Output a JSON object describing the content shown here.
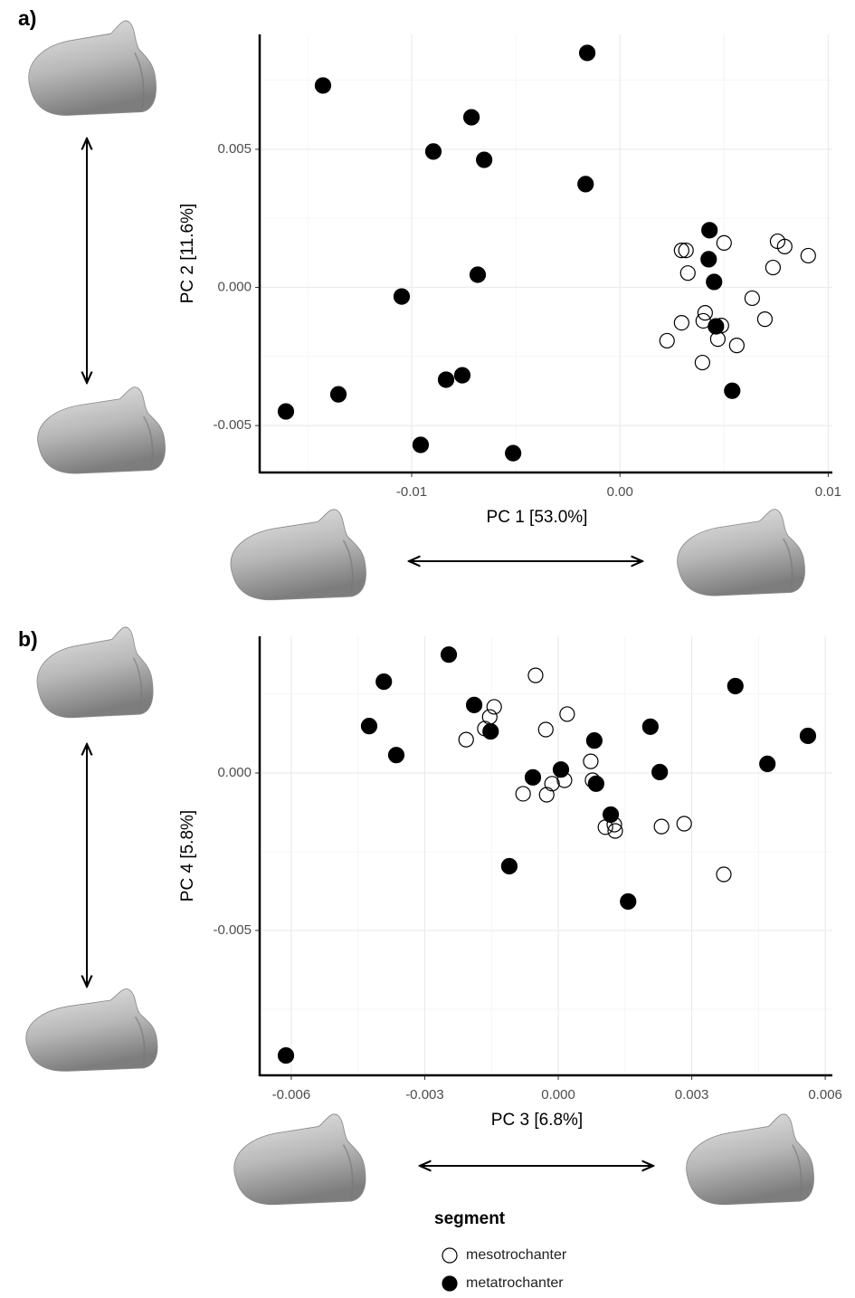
{
  "chart_data": [
    {
      "type": "scatter",
      "panel_label": "a)",
      "x_label": "PC 1 [53.0%]",
      "y_label": "PC 2 [11.6%]",
      "xlim": [
        -0.0173,
        0.0102
      ],
      "ylim": [
        -0.0067,
        0.00916
      ],
      "xticks": [
        -0.01,
        {
          "value": 0,
          "label": "0.00"
        },
        0.01
      ],
      "yticks": [
        -0.005,
        {
          "value": 0,
          "label": "0.000"
        },
        0.005
      ],
      "xminor": [
        -0.015,
        -0.005,
        0.005
      ],
      "yminor": [
        -0.0025,
        0.0025,
        0.0075
      ],
      "grid": true,
      "series": [
        {
          "name": "mesotrochanter",
          "color": "#000000",
          "filled": false,
          "x": [
            0.00296,
            0.00317,
            0.005,
            0.00757,
            0.00791,
            0.00904,
            0.00735,
            0.00326,
            0.00635,
            0.00409,
            0.004,
            0.00296,
            0.00696,
            0.00487,
            0.0047,
            0.00226,
            0.00561,
            0.00396
          ],
          "values": [
            0.00134,
            0.00134,
            0.00161,
            0.00167,
            0.00148,
            0.00115,
            0.00072,
            0.00052,
            -0.00039,
            -0.00092,
            -0.00121,
            -0.00128,
            -0.00115,
            -0.00138,
            -0.00187,
            -0.00193,
            -0.0021,
            -0.00272
          ]
        },
        {
          "name": "metatrochanter",
          "color": "#000000",
          "filled": true,
          "x": [
            -0.00157,
            -0.01426,
            -0.00713,
            -0.00896,
            -0.00652,
            -0.00165,
            0.0043,
            0.00426,
            0.00452,
            -0.00683,
            -0.01048,
            0.00461,
            -0.00757,
            -0.00835,
            0.00539,
            -0.01352,
            -0.01604,
            -0.00957,
            -0.00513
          ],
          "values": [
            0.00849,
            0.00731,
            0.00616,
            0.00492,
            0.00462,
            0.00374,
            0.00207,
            0.00102,
            0.0002,
            0.00046,
            -0.00033,
            -0.00141,
            -0.00318,
            -0.00334,
            -0.00374,
            -0.00387,
            -0.00449,
            -0.0057,
            -0.006
          ]
        }
      ]
    },
    {
      "type": "scatter",
      "panel_label": "b)",
      "x_label": "PC 3 [6.8%]",
      "y_label": "PC 4 [5.8%]",
      "xlim": [
        -0.00671,
        0.00616
      ],
      "ylim": [
        -0.0096,
        0.00434
      ],
      "xticks": [
        -0.006,
        -0.003,
        {
          "value": 0,
          "label": "0.000"
        },
        0.003,
        0.006
      ],
      "yticks": [
        -0.005,
        {
          "value": 0,
          "label": "0.000"
        }
      ],
      "xminor": [
        -0.0045,
        -0.0015,
        0.0015,
        0.0045
      ],
      "yminor": [
        -0.0075,
        -0.0025,
        0.0025
      ],
      "grid": true,
      "legend_title": "segment",
      "series": [
        {
          "name": "mesotrochanter",
          "color": "#000000",
          "filled": false,
          "x": [
            -0.00051,
            -0.00144,
            -0.00154,
            -0.00165,
            0.0002,
            -0.00028,
            -0.00207,
            0.00073,
            0.00077,
            0.00014,
            -0.00014,
            -0.00079,
            -0.00026,
            0.00106,
            0.00126,
            0.00128,
            0.00232,
            0.00283,
            0.00372
          ],
          "values": [
            0.0031,
            0.0021,
            0.00178,
            0.00141,
            0.00187,
            0.00138,
            0.00106,
            0.00037,
            -0.00023,
            -0.00023,
            -0.00034,
            -0.00066,
            -0.00069,
            -0.00172,
            -0.00164,
            -0.00184,
            -0.0017,
            -0.00161,
            -0.00322
          ]
        },
        {
          "name": "metatrochanter",
          "color": "#000000",
          "filled": true,
          "x": [
            -0.00246,
            -0.00392,
            0.00398,
            -0.00189,
            -0.00425,
            0.00207,
            -0.00152,
            0.00561,
            0.00081,
            -0.00364,
            0.0047,
            6e-05,
            0.00228,
            -0.00057,
            0.00085,
            0.00118,
            -0.0011,
            0.00157,
            -0.00612
          ],
          "values": [
            0.00376,
            0.0029,
            0.00276,
            0.00216,
            0.00149,
            0.00147,
            0.00132,
            0.00118,
            0.00103,
            0.00057,
            0.00029,
            0.00011,
            3e-05,
            -0.00014,
            -0.00034,
            -0.00132,
            -0.00296,
            -0.00408,
            -0.00897
          ]
        }
      ]
    }
  ]
}
